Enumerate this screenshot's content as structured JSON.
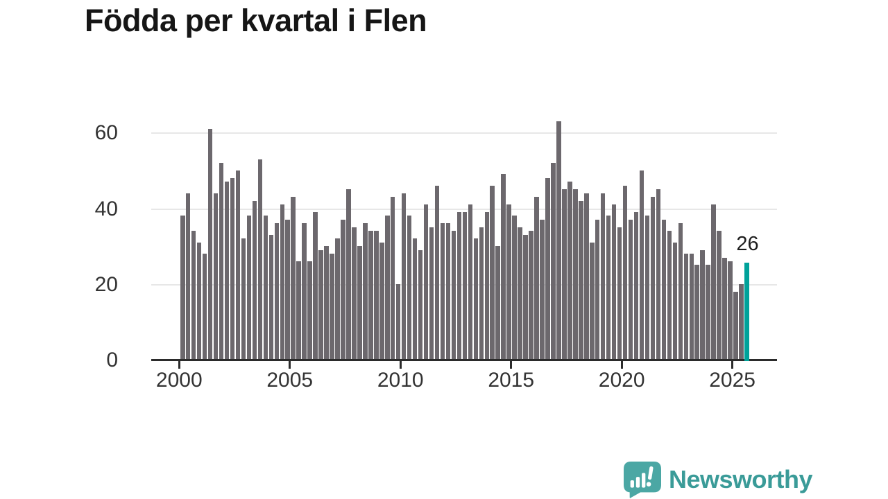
{
  "title": "Födda per kvartal i Flen",
  "chart_data": {
    "type": "bar",
    "title": "Födda per kvartal i Flen",
    "x_period_start": "2000-Q1",
    "x_period_end": "2025-Q3",
    "frequency": "quarterly",
    "values": [
      38,
      44,
      34,
      31,
      28,
      61,
      44,
      52,
      47,
      48,
      50,
      32,
      38,
      42,
      53,
      38,
      33,
      36,
      41,
      37,
      43,
      26,
      36,
      26,
      39,
      29,
      30,
      28,
      32,
      37,
      45,
      35,
      30,
      36,
      34,
      34,
      31,
      38,
      43,
      20,
      44,
      38,
      32,
      29,
      41,
      35,
      46,
      36,
      36,
      34,
      39,
      39,
      41,
      32,
      35,
      39,
      46,
      30,
      49,
      41,
      38,
      35,
      33,
      34,
      43,
      37,
      48,
      52,
      63,
      45,
      47,
      45,
      42,
      44,
      31,
      37,
      44,
      38,
      41,
      35,
      46,
      37,
      39,
      50,
      38,
      43,
      45,
      37,
      34,
      31,
      36,
      28,
      28,
      25,
      29,
      25,
      41,
      34,
      27,
      26,
      18,
      20,
      26
    ],
    "xticks": [
      2000,
      2005,
      2010,
      2015,
      2020,
      2025
    ],
    "yticks": [
      0,
      20,
      40,
      60
    ],
    "ylim": [
      0,
      66
    ],
    "grid": "horizontal",
    "legend": "none",
    "bar_color": "#6c686d",
    "highlight": {
      "index": 102,
      "value": 26,
      "label": "26",
      "color": "#00a29a"
    }
  },
  "branding": {
    "logo_text": "Newsworthy",
    "logo_color": "#3a9b98",
    "icon": "newsworthy-speech-bubble-chart-icon",
    "icon_color": "#4ba7a4"
  }
}
